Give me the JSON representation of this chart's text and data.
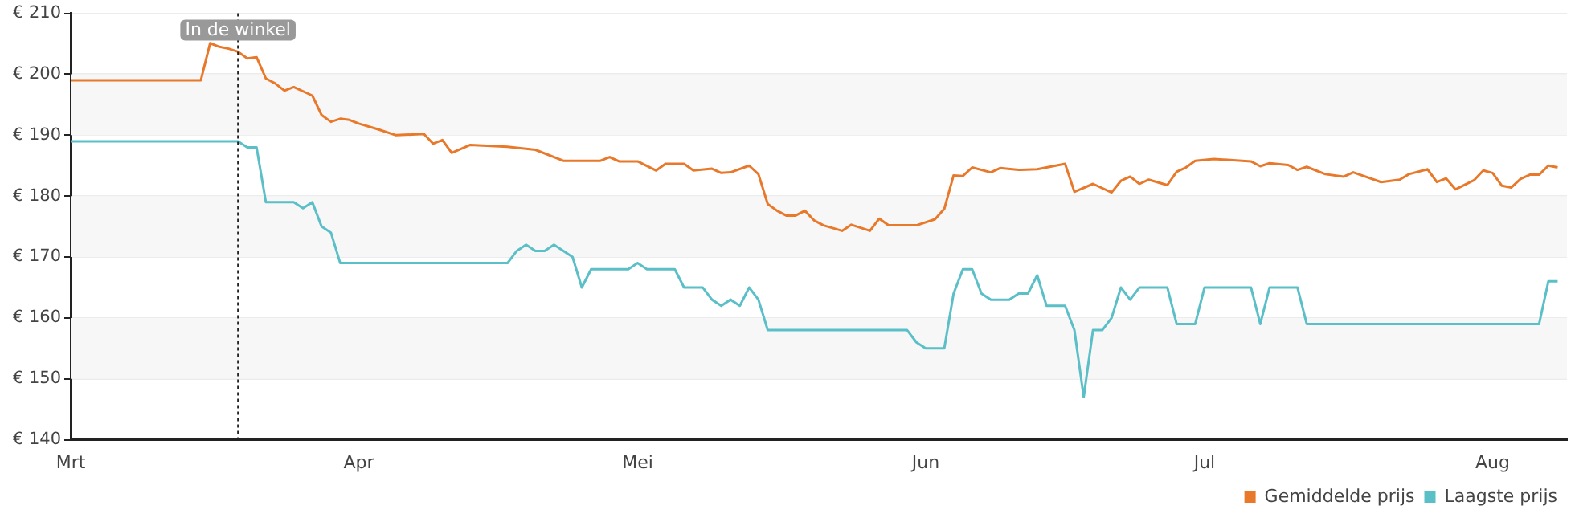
{
  "chart_data": {
    "type": "line",
    "xlim": [
      "--03-01",
      "--08-09"
    ],
    "xticks": [
      {
        "value": "--03-01",
        "label": "Mrt"
      },
      {
        "value": "--04-01",
        "label": "Apr"
      },
      {
        "value": "--05-01",
        "label": "Mei"
      },
      {
        "value": "--06-01",
        "label": "Jun"
      },
      {
        "value": "--07-01",
        "label": "Jul"
      },
      {
        "value": "--08-01",
        "label": "Aug"
      }
    ],
    "ylim": [
      140,
      210
    ],
    "yticks": [
      {
        "value": 140,
        "label": "€ 140"
      },
      {
        "value": 150,
        "label": "€ 150"
      },
      {
        "value": 160,
        "label": "€ 160"
      },
      {
        "value": 170,
        "label": "€ 170"
      },
      {
        "value": 180,
        "label": "€ 180"
      },
      {
        "value": 190,
        "label": "€ 190"
      },
      {
        "value": 200,
        "label": "€ 200"
      },
      {
        "value": 210,
        "label": "€ 210"
      }
    ],
    "grid": "y",
    "legend": "bottom right",
    "marker": "none",
    "line_style": "solid",
    "ref_lines": [
      {
        "axis": "x",
        "value": "--03-19",
        "label": "In de winkel",
        "line_style": "dotted",
        "color": "#222222"
      }
    ],
    "series": [
      {
        "name": "Gemiddelde prijs",
        "color": "#e8792b",
        "x": [
          "--03-01",
          "--03-15",
          "--03-16",
          "--03-17",
          "--03-18",
          "--03-19",
          "--03-20",
          "--03-21",
          "--03-22",
          "--03-23",
          "--03-24",
          "--03-25",
          "--03-27",
          "--03-28",
          "--03-29",
          "--03-30",
          "--03-31",
          "--04-01",
          "--04-03",
          "--04-05",
          "--04-08",
          "--04-09",
          "--04-10",
          "--04-11",
          "--04-13",
          "--04-17",
          "--04-20",
          "--04-23",
          "--04-27",
          "--04-28",
          "--04-29",
          "--05-01",
          "--05-03",
          "--05-04",
          "--05-06",
          "--05-07",
          "--05-09",
          "--05-10",
          "--05-11",
          "--05-13",
          "--05-14",
          "--05-15",
          "--05-16",
          "--05-17",
          "--05-18",
          "--05-19",
          "--05-20",
          "--05-21",
          "--05-23",
          "--05-24",
          "--05-26",
          "--05-27",
          "--05-28",
          "--05-31",
          "--06-02",
          "--06-03",
          "--06-04",
          "--06-05",
          "--06-06",
          "--06-08",
          "--06-09",
          "--06-11",
          "--06-13",
          "--06-16",
          "--06-17",
          "--06-19",
          "--06-21",
          "--06-22",
          "--06-23",
          "--06-24",
          "--06-25",
          "--06-27",
          "--06-28",
          "--06-29",
          "--06-30",
          "--07-02",
          "--07-06",
          "--07-07",
          "--07-08",
          "--07-10",
          "--07-11",
          "--07-12",
          "--07-14",
          "--07-16",
          "--07-17",
          "--07-20",
          "--07-22",
          "--07-23",
          "--07-25",
          "--07-26",
          "--07-27",
          "--07-28",
          "--07-30",
          "--07-31",
          "--08-01",
          "--08-02",
          "--08-03",
          "--08-04",
          "--08-05",
          "--08-06",
          "--08-07",
          "--08-08"
        ],
        "values": [
          199,
          199,
          205.1,
          204.5,
          204.2,
          203.7,
          202.6,
          202.8,
          199.3,
          198.5,
          197.3,
          197.9,
          196.5,
          193.3,
          192.2,
          192.7,
          192.5,
          191.9,
          191,
          190,
          190.2,
          188.6,
          189.2,
          187.1,
          188.4,
          188.1,
          187.6,
          185.8,
          185.8,
          186.4,
          185.7,
          185.7,
          184.2,
          185.3,
          185.3,
          184.2,
          184.5,
          183.8,
          183.9,
          185,
          183.6,
          178.7,
          177.6,
          176.8,
          176.8,
          177.6,
          176,
          175.2,
          174.3,
          175.3,
          174.3,
          176.3,
          175.2,
          175.2,
          176.2,
          177.9,
          183.4,
          183.3,
          184.7,
          183.9,
          184.6,
          184.3,
          184.4,
          185.3,
          180.7,
          182,
          180.6,
          182.5,
          183.2,
          182,
          182.7,
          181.8,
          184,
          184.7,
          185.8,
          186.1,
          185.7,
          184.9,
          185.4,
          185.1,
          184.3,
          184.8,
          183.6,
          183.2,
          183.9,
          182.3,
          182.7,
          183.6,
          184.4,
          182.3,
          182.9,
          181.1,
          182.6,
          184.2,
          183.8,
          181.7,
          181.4,
          182.8,
          183.5,
          183.5,
          185,
          184.7
        ]
      },
      {
        "name": "Laagste prijs",
        "color": "#5bbfc8",
        "x": [
          "--03-01",
          "--03-19",
          "--03-20",
          "--03-21",
          "--03-22",
          "--03-25",
          "--03-26",
          "--03-27",
          "--03-28",
          "--03-29",
          "--03-30",
          "--04-17",
          "--04-18",
          "--04-19",
          "--04-20",
          "--04-21",
          "--04-22",
          "--04-24",
          "--04-25",
          "--04-26",
          "--04-30",
          "--05-01",
          "--05-02",
          "--05-05",
          "--05-06",
          "--05-08",
          "--05-09",
          "--05-10",
          "--05-11",
          "--05-12",
          "--05-13",
          "--05-14",
          "--05-15",
          "--05-30",
          "--05-31",
          "--06-01",
          "--06-03",
          "--06-04",
          "--06-05",
          "--06-06",
          "--06-07",
          "--06-08",
          "--06-10",
          "--06-11",
          "--06-12",
          "--06-13",
          "--06-14",
          "--06-16",
          "--06-17",
          "--06-18",
          "--06-19",
          "--06-20",
          "--06-21",
          "--06-22",
          "--06-23",
          "--06-24",
          "--06-27",
          "--06-28",
          "--06-30",
          "--07-01",
          "--07-06",
          "--07-07",
          "--07-08",
          "--07-11",
          "--07-12",
          "--08-06",
          "--08-07",
          "--08-08"
        ],
        "values": [
          189,
          189,
          188,
          188,
          179,
          179,
          178,
          179,
          175,
          174,
          169,
          169,
          171,
          172,
          171,
          171,
          172,
          170,
          165,
          168,
          168,
          169,
          168,
          168,
          165,
          165,
          163,
          162,
          163,
          162,
          165,
          163,
          158,
          158,
          156,
          155,
          155,
          164,
          168,
          168,
          164,
          163,
          163,
          164,
          164,
          167,
          162,
          162,
          158,
          147,
          158,
          158,
          160,
          165,
          163,
          165,
          165,
          159,
          159,
          165,
          165,
          159,
          165,
          165,
          159,
          159,
          166,
          166
        ]
      }
    ]
  }
}
